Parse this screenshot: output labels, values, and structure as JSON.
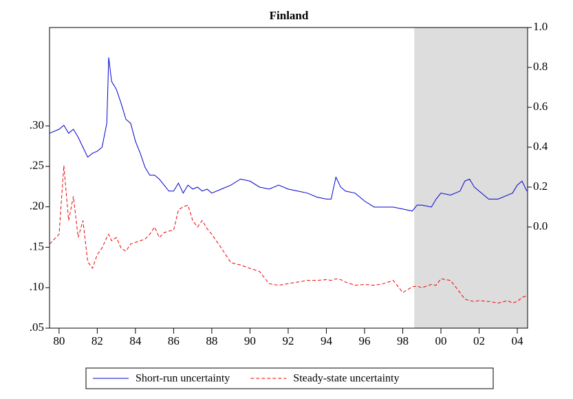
{
  "chart_data": {
    "type": "line",
    "title": "Finland",
    "x": [
      1979.5,
      1980,
      1980.25,
      1980.5,
      1980.75,
      1981,
      1981.25,
      1981.5,
      1981.75,
      1982,
      1982.25,
      1982.5,
      1982.6,
      1982.75,
      1983,
      1983.25,
      1983.5,
      1983.75,
      1984,
      1984.25,
      1984.5,
      1984.75,
      1985,
      1985.25,
      1985.5,
      1985.75,
      1986,
      1986.25,
      1986.5,
      1986.75,
      1987,
      1987.25,
      1987.5,
      1987.75,
      1988,
      1988.5,
      1989,
      1989.5,
      1990,
      1990.5,
      1991,
      1991.5,
      1992,
      1992.5,
      1993,
      1993.5,
      1994,
      1994.25,
      1994.5,
      1994.75,
      1995,
      1995.5,
      1996,
      1996.5,
      1997,
      1997.5,
      1998,
      1998.5,
      1998.75,
      1999,
      1999.5,
      1999.75,
      2000,
      2000.5,
      2001,
      2001.25,
      2001.5,
      2001.75,
      2002,
      2002.5,
      2003,
      2003.5,
      2003.75,
      2004,
      2004.25,
      2004.5
    ],
    "series": [
      {
        "name": "Short-run uncertainty",
        "color": "#0000cc",
        "style": "solid",
        "axis": "y2",
        "values": [
          0.47,
          0.49,
          0.51,
          0.47,
          0.49,
          0.45,
          0.4,
          0.35,
          0.37,
          0.38,
          0.4,
          0.52,
          0.85,
          0.73,
          0.69,
          0.62,
          0.54,
          0.52,
          0.43,
          0.37,
          0.3,
          0.26,
          0.26,
          0.24,
          0.21,
          0.18,
          0.18,
          0.22,
          0.17,
          0.21,
          0.19,
          0.2,
          0.18,
          0.19,
          0.17,
          0.19,
          0.21,
          0.24,
          0.23,
          0.2,
          0.19,
          0.21,
          0.19,
          0.18,
          0.17,
          0.15,
          0.14,
          0.14,
          0.25,
          0.2,
          0.18,
          0.17,
          0.13,
          0.1,
          0.1,
          0.1,
          0.09,
          0.08,
          0.11,
          0.11,
          0.1,
          0.14,
          0.17,
          0.16,
          0.18,
          0.23,
          0.24,
          0.2,
          0.18,
          0.14,
          0.14,
          0.16,
          0.17,
          0.21,
          0.23,
          0.18
        ]
      },
      {
        "name": "Steady-state uncertainty",
        "color": "#ee0000",
        "style": "dashed",
        "axis": "y",
        "values": [
          0.154,
          0.166,
          0.251,
          0.183,
          0.213,
          0.162,
          0.183,
          0.132,
          0.124,
          0.141,
          0.149,
          0.162,
          0.166,
          0.158,
          0.162,
          0.149,
          0.145,
          0.154,
          0.156,
          0.158,
          0.16,
          0.166,
          0.175,
          0.162,
          0.168,
          0.17,
          0.171,
          0.196,
          0.2,
          0.202,
          0.183,
          0.175,
          0.183,
          0.173,
          0.166,
          0.149,
          0.131,
          0.128,
          0.124,
          0.12,
          0.105,
          0.103,
          0.105,
          0.107,
          0.109,
          0.109,
          0.11,
          0.109,
          0.111,
          0.11,
          0.107,
          0.103,
          0.104,
          0.103,
          0.105,
          0.109,
          0.094,
          0.101,
          0.102,
          0.1,
          0.104,
          0.103,
          0.111,
          0.109,
          0.094,
          0.086,
          0.084,
          0.083,
          0.084,
          0.083,
          0.081,
          0.084,
          0.081,
          0.083,
          0.088,
          0.09
        ]
      }
    ],
    "xlim": [
      1979.5,
      2004.54
    ],
    "xticks": [
      {
        "value": 1980,
        "label": "80"
      },
      {
        "value": 1982,
        "label": "82"
      },
      {
        "value": 1984,
        "label": "84"
      },
      {
        "value": 1986,
        "label": "86"
      },
      {
        "value": 1988,
        "label": "88"
      },
      {
        "value": 1990,
        "label": "90"
      },
      {
        "value": 1992,
        "label": "92"
      },
      {
        "value": 1994,
        "label": "94"
      },
      {
        "value": 1996,
        "label": "96"
      },
      {
        "value": 1998,
        "label": "98"
      },
      {
        "value": 2000,
        "label": "00"
      },
      {
        "value": 2002,
        "label": "02"
      },
      {
        "value": 2004,
        "label": "04"
      }
    ],
    "ylim": [
      0.05,
      0.4216
    ],
    "yticks": [
      {
        "value": 0.05,
        "label": ".05"
      },
      {
        "value": 0.1,
        "label": ".10"
      },
      {
        "value": 0.15,
        "label": ".15"
      },
      {
        "value": 0.2,
        "label": ".20"
      },
      {
        "value": 0.25,
        "label": ".25"
      },
      {
        "value": 0.3,
        "label": ".30"
      }
    ],
    "y2lim": [
      -0.507,
      1.0
    ],
    "y2ticks": [
      {
        "value": 0.0,
        "label": "0.0"
      },
      0.2,
      0.4,
      0.6,
      0.8,
      {
        "value": 1.0,
        "label": "1.0"
      }
    ],
    "shade": [
      1998.6,
      2004.54
    ],
    "legend": "bottom"
  }
}
